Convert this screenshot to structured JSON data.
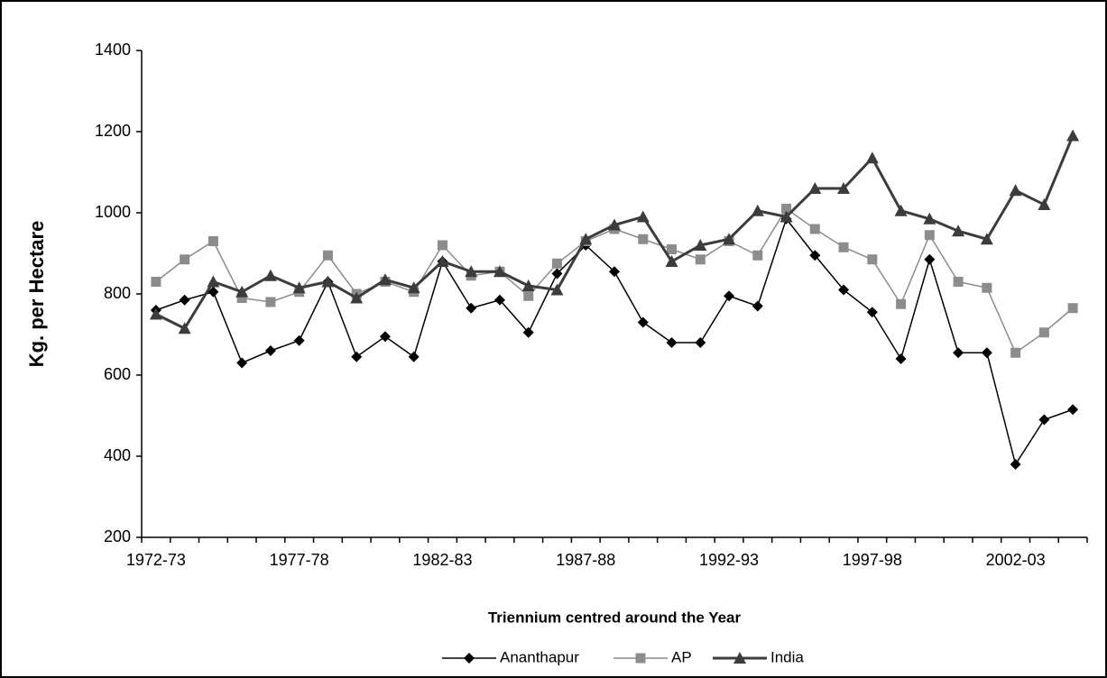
{
  "chart_data": {
    "type": "line",
    "y_label": "Kg. per Hectare",
    "x_label": "Triennium centred around the Year",
    "categories": [
      "1972-73",
      null,
      null,
      null,
      null,
      "1977-78",
      null,
      null,
      null,
      null,
      "1982-83",
      null,
      null,
      null,
      null,
      "1987-88",
      null,
      null,
      null,
      null,
      "1992-93",
      null,
      null,
      null,
      null,
      "1997-98",
      null,
      null,
      null,
      null,
      "2002-03",
      null,
      null
    ],
    "series": [
      {
        "name": "Ananthapur",
        "color": "#000000",
        "marker": "diamond",
        "values": [
          760,
          785,
          805,
          630,
          660,
          685,
          830,
          645,
          695,
          645,
          880,
          765,
          785,
          705,
          850,
          920,
          855,
          730,
          680,
          680,
          795,
          770,
          985,
          895,
          810,
          755,
          640,
          885,
          655,
          655,
          380,
          490,
          515
        ]
      },
      {
        "name": "AP",
        "color": "#8c8c8c",
        "marker": "square",
        "values": [
          830,
          885,
          930,
          790,
          780,
          805,
          895,
          800,
          830,
          805,
          920,
          845,
          855,
          795,
          875,
          930,
          960,
          935,
          910,
          885,
          930,
          895,
          1010,
          960,
          915,
          885,
          775,
          945,
          830,
          815,
          655,
          705,
          765
        ]
      },
      {
        "name": "India",
        "color": "#3c3c3c",
        "marker": "triangle",
        "values": [
          750,
          715,
          830,
          805,
          845,
          815,
          830,
          790,
          835,
          815,
          880,
          855,
          855,
          820,
          810,
          935,
          970,
          990,
          880,
          920,
          935,
          1005,
          990,
          1060,
          1060,
          1135,
          1005,
          985,
          955,
          935,
          1055,
          1020,
          1190
        ]
      }
    ],
    "ylim": [
      200,
      1400
    ],
    "yticks": [
      200,
      400,
      600,
      800,
      1000,
      1200,
      1400
    ],
    "grid": false,
    "legend": "bottom"
  }
}
